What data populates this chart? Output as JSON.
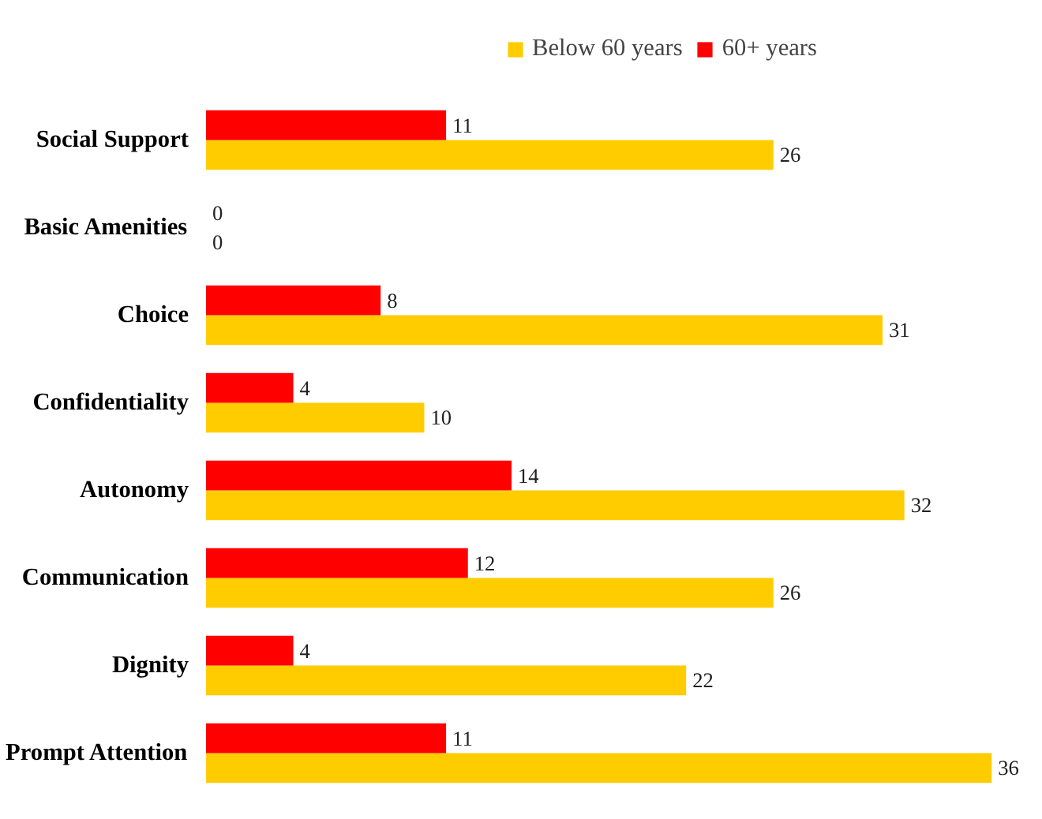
{
  "chart_data": {
    "type": "bar",
    "orientation": "horizontal",
    "categories": [
      "Social Support",
      "Basic Amenities",
      "Choice",
      "Confidentiality",
      "Autonomy",
      "Communication",
      "Dignity",
      "Prompt Attention"
    ],
    "series": [
      {
        "name": "Below 60 years",
        "color": "#ffcc00",
        "values": [
          26,
          0,
          31,
          10,
          32,
          26,
          22,
          36
        ]
      },
      {
        "name": "60+ years",
        "color": "#ff0000",
        "values": [
          11,
          0,
          8,
          4,
          14,
          12,
          4,
          11
        ]
      }
    ],
    "data_labels": true,
    "legend": "top",
    "grid": false
  }
}
